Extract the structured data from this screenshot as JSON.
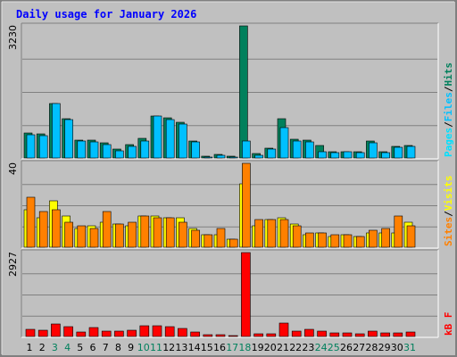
{
  "chart_data": {
    "type": "bar",
    "title": "Daily usage for January 2026",
    "categories": [
      "1",
      "2",
      "3",
      "4",
      "5",
      "6",
      "7",
      "8",
      "9",
      "10",
      "11",
      "12",
      "13",
      "14",
      "15",
      "16",
      "17",
      "18",
      "19",
      "20",
      "21",
      "22",
      "23",
      "24",
      "25",
      "26",
      "27",
      "28",
      "29",
      "30",
      "31"
    ],
    "weekend_days": [
      "3",
      "4",
      "10",
      "11",
      "17",
      "18",
      "24",
      "25",
      "31"
    ],
    "panels": [
      {
        "ymax_label": "3230",
        "series": [
          {
            "name": "Hits",
            "color": "#00805c",
            "values": [
              620,
              590,
              1330,
              960,
              430,
              430,
              370,
              220,
              330,
              480,
              1030,
              990,
              880,
              420,
              40,
              80,
              50,
              3230,
              110,
              250,
              960,
              460,
              430,
              310,
              160,
              160,
              160,
              410,
              160,
              280,
              300
            ]
          },
          {
            "name": "Files",
            "color": "#00c0ff",
            "values": [
              570,
              550,
              1330,
              930,
              420,
              390,
              320,
              170,
              290,
              420,
              1020,
              940,
              820,
              400,
              30,
              70,
              30,
              420,
              70,
              220,
              750,
              420,
              400,
              150,
              130,
              150,
              140,
              380,
              140,
              270,
              290
            ]
          },
          {
            "name": "Pages",
            "color": "#00e0ff",
            "values": []
          }
        ],
        "legend": [
          {
            "name": "Pages",
            "color": "#00e0ff"
          },
          {
            "name": "Files",
            "color": "#00c0ff"
          },
          {
            "name": "Hits",
            "color": "#00805c"
          }
        ]
      },
      {
        "ymax_label": "40",
        "series": [
          {
            "name": "Visits",
            "color": "#ffff00",
            "values": [
              18,
              14,
              22,
              15,
              9,
              10,
              12,
              11,
              10,
              15,
              15,
              14,
              14,
              9,
              6,
              6,
              4,
              30,
              10,
              13,
              14,
              11,
              6,
              7,
              5,
              6,
              5,
              7,
              7,
              7,
              12
            ]
          },
          {
            "name": "Sites",
            "color": "#ff8000",
            "values": [
              24,
              17,
              18,
              12,
              10,
              9,
              17,
              11,
              12,
              15,
              14,
              14,
              12,
              8,
              6,
              9,
              4,
              40,
              13,
              13,
              13,
              10,
              7,
              7,
              6,
              6,
              5,
              8,
              9,
              15,
              10
            ]
          }
        ],
        "legend": [
          {
            "name": "Sites",
            "color": "#ff8000"
          },
          {
            "name": "Visits",
            "color": "#ffff00"
          }
        ]
      },
      {
        "ymax_label": "2927",
        "series": [
          {
            "name": "kB F",
            "color": "#ff0000",
            "values": [
              260,
              230,
              440,
              330,
              170,
              320,
              190,
              190,
              220,
              370,
              370,
              350,
              280,
              150,
              50,
              60,
              40,
              2927,
              80,
              80,
              460,
              180,
              260,
              190,
              140,
              120,
              100,
              180,
              110,
              140,
              170
            ]
          }
        ],
        "legend": [
          {
            "name": "kB F",
            "color": "#ff0000"
          }
        ]
      }
    ]
  }
}
